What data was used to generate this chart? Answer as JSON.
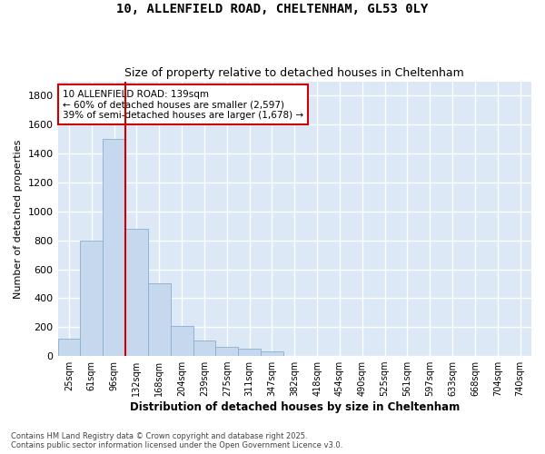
{
  "title_line1": "10, ALLENFIELD ROAD, CHELTENHAM, GL53 0LY",
  "title_line2": "Size of property relative to detached houses in Cheltenham",
  "xlabel": "Distribution of detached houses by size in Cheltenham",
  "ylabel": "Number of detached properties",
  "categories": [
    "25sqm",
    "61sqm",
    "96sqm",
    "132sqm",
    "168sqm",
    "204sqm",
    "239sqm",
    "275sqm",
    "311sqm",
    "347sqm",
    "382sqm",
    "418sqm",
    "454sqm",
    "490sqm",
    "525sqm",
    "561sqm",
    "597sqm",
    "633sqm",
    "668sqm",
    "704sqm",
    "740sqm"
  ],
  "values": [
    120,
    800,
    1500,
    880,
    500,
    210,
    110,
    65,
    50,
    30,
    0,
    0,
    0,
    0,
    0,
    0,
    0,
    0,
    0,
    0,
    0
  ],
  "bar_color": "#c5d8ee",
  "bar_edge_color": "#89aecf",
  "vline_color": "#cc0000",
  "vline_index": 2,
  "annotation_text": "10 ALLENFIELD ROAD: 139sqm\n← 60% of detached houses are smaller (2,597)\n39% of semi-detached houses are larger (1,678) →",
  "ylim": [
    0,
    1900
  ],
  "yticks": [
    0,
    200,
    400,
    600,
    800,
    1000,
    1200,
    1400,
    1600,
    1800
  ],
  "plot_bg": "#dce8f5",
  "fig_bg": "#ffffff",
  "grid_color": "#ffffff",
  "footer_line1": "Contains HM Land Registry data © Crown copyright and database right 2025.",
  "footer_line2": "Contains public sector information licensed under the Open Government Licence v3.0."
}
